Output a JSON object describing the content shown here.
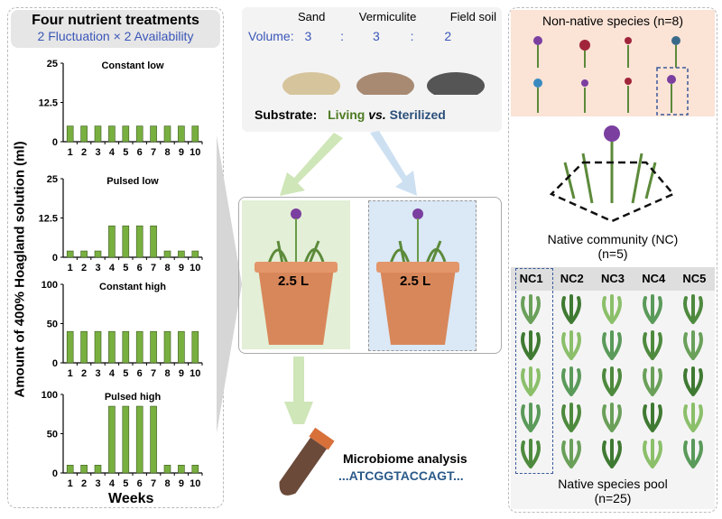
{
  "left_panel": {
    "title": "Four nutrient treatments",
    "subtitle": "2 Fluctuation × 2 Availability",
    "ylabel": "Amount of 400% Hoagland solution (ml)",
    "xlabel": "Weeks"
  },
  "chart_data": [
    {
      "type": "bar",
      "title": "Constant low",
      "categories": [
        "1",
        "2",
        "3",
        "4",
        "5",
        "6",
        "7",
        "8",
        "9",
        "10"
      ],
      "values": [
        5,
        5,
        5,
        5,
        5,
        5,
        5,
        5,
        5,
        5
      ],
      "ylim": [
        0,
        25
      ],
      "yticks": [
        "0",
        "12.5",
        "25"
      ],
      "color": "#78b040"
    },
    {
      "type": "bar",
      "title": "Pulsed low",
      "categories": [
        "1",
        "2",
        "3",
        "4",
        "5",
        "6",
        "7",
        "8",
        "9",
        "10"
      ],
      "values": [
        2,
        2,
        2,
        10,
        10,
        10,
        10,
        2,
        2,
        2
      ],
      "ylim": [
        0,
        25
      ],
      "yticks": [
        "0",
        "12.5",
        "25"
      ],
      "color": "#78b040"
    },
    {
      "type": "bar",
      "title": "Constant high",
      "categories": [
        "1",
        "2",
        "3",
        "4",
        "5",
        "6",
        "7",
        "8",
        "9",
        "10"
      ],
      "values": [
        40,
        40,
        40,
        40,
        40,
        40,
        40,
        40,
        40,
        40
      ],
      "ylim": [
        0,
        100
      ],
      "yticks": [
        "0",
        "50",
        "100"
      ],
      "color": "#78b040"
    },
    {
      "type": "bar",
      "title": "Pulsed high",
      "categories": [
        "1",
        "2",
        "3",
        "4",
        "5",
        "6",
        "7",
        "8",
        "9",
        "10"
      ],
      "values": [
        10,
        10,
        10,
        85,
        85,
        85,
        85,
        10,
        10,
        10
      ],
      "ylim": [
        0,
        100
      ],
      "yticks": [
        "0",
        "50",
        "100"
      ],
      "color": "#78b040"
    }
  ],
  "substrate": {
    "components": [
      "Sand",
      "Vermiculite",
      "Field soil"
    ],
    "volume_label": "Volume:",
    "volumes": [
      "3",
      ":",
      "3",
      ":",
      "2"
    ],
    "label": "Substrate:",
    "living": "Living",
    "vs": "vs.",
    "sterilized": "Sterilized"
  },
  "pots": {
    "volume": "2.5 L"
  },
  "microbiome": {
    "title": "Microbiome analysis",
    "sequence": "...ATCGGTACCAGT..."
  },
  "right_panel": {
    "non_native": "Non-native species (n=8)",
    "native_community": "Native community (NC)",
    "native_community_n": "(n=5)",
    "nc_headers": [
      "NC1",
      "NC2",
      "NC3",
      "NC4",
      "NC5"
    ],
    "pool": "Native species pool",
    "pool_n": "(n=25)"
  },
  "colors": {
    "green": "#78b040",
    "blue": "#2e4fa3",
    "living": "#4d7a22",
    "sterilized": "#2b4f7a",
    "green_bg": "#e3efd6",
    "blue_bg": "#dbe8f5",
    "pink_bg": "#fbe3d6"
  }
}
